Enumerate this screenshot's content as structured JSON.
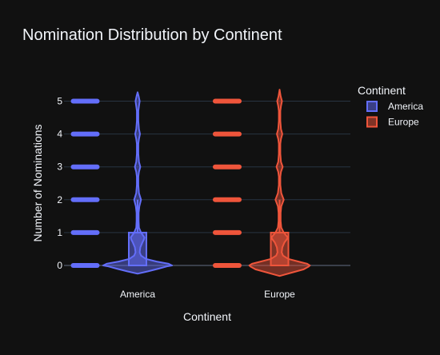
{
  "chart_data": {
    "type": "violin",
    "title": "Nomination Distribution by Continent",
    "xlabel": "Continent",
    "ylabel": "Number of Nominations",
    "categories": [
      "America",
      "Europe"
    ],
    "yticks": [
      0,
      1,
      2,
      3,
      4,
      5
    ],
    "ylim": [
      -0.3,
      5.5
    ],
    "grid": true,
    "legend": {
      "title": "Continent",
      "placement": "top-right"
    },
    "series": [
      {
        "name": "America",
        "color": "#636efa",
        "points": [
          0,
          1,
          2,
          3,
          4,
          5
        ],
        "box": {
          "q1": 0,
          "median": 0,
          "q3": 1,
          "whisker_low": 0,
          "whisker_high": 2
        },
        "density": [
          [
            -0.25,
            0.0
          ],
          [
            -0.18,
            0.3
          ],
          [
            -0.1,
            0.6
          ],
          [
            -0.03,
            0.85
          ],
          [
            0.0,
            1.0
          ],
          [
            0.05,
            0.9
          ],
          [
            0.12,
            0.55
          ],
          [
            0.2,
            0.24
          ],
          [
            0.3,
            0.1
          ],
          [
            0.4,
            0.06
          ],
          [
            0.55,
            0.08
          ],
          [
            0.7,
            0.14
          ],
          [
            0.78,
            0.18
          ],
          [
            0.85,
            0.2
          ],
          [
            1.0,
            0.1
          ],
          [
            1.15,
            0.04
          ],
          [
            1.35,
            0.03
          ],
          [
            1.6,
            0.03
          ],
          [
            1.8,
            0.05
          ],
          [
            2.0,
            0.1
          ],
          [
            2.2,
            0.04
          ],
          [
            2.45,
            0.02
          ],
          [
            2.7,
            0.02
          ],
          [
            2.85,
            0.04
          ],
          [
            3.0,
            0.08
          ],
          [
            3.15,
            0.04
          ],
          [
            3.4,
            0.02
          ],
          [
            3.7,
            0.02
          ],
          [
            3.85,
            0.04
          ],
          [
            4.0,
            0.07
          ],
          [
            4.15,
            0.04
          ],
          [
            4.4,
            0.02
          ],
          [
            4.7,
            0.02
          ],
          [
            4.85,
            0.04
          ],
          [
            5.0,
            0.06
          ],
          [
            5.15,
            0.03
          ],
          [
            5.27,
            0.0
          ]
        ]
      },
      {
        "name": "Europe",
        "color": "#ef553b",
        "points": [
          0,
          1,
          2,
          3,
          4,
          5
        ],
        "box": {
          "q1": 0,
          "median": 0,
          "q3": 1,
          "whisker_low": 0,
          "whisker_high": 2
        },
        "density": [
          [
            -0.32,
            0.0
          ],
          [
            -0.22,
            0.35
          ],
          [
            -0.12,
            0.7
          ],
          [
            -0.03,
            0.85
          ],
          [
            0.0,
            0.88
          ],
          [
            0.05,
            0.8
          ],
          [
            0.12,
            0.55
          ],
          [
            0.2,
            0.25
          ],
          [
            0.3,
            0.1
          ],
          [
            0.4,
            0.06
          ],
          [
            0.55,
            0.08
          ],
          [
            0.7,
            0.14
          ],
          [
            0.78,
            0.2
          ],
          [
            0.85,
            0.24
          ],
          [
            1.0,
            0.12
          ],
          [
            1.15,
            0.05
          ],
          [
            1.35,
            0.03
          ],
          [
            1.6,
            0.03
          ],
          [
            1.8,
            0.05
          ],
          [
            2.0,
            0.12
          ],
          [
            2.2,
            0.05
          ],
          [
            2.45,
            0.02
          ],
          [
            2.7,
            0.02
          ],
          [
            2.85,
            0.04
          ],
          [
            3.0,
            0.09
          ],
          [
            3.15,
            0.04
          ],
          [
            3.4,
            0.02
          ],
          [
            3.7,
            0.02
          ],
          [
            3.85,
            0.04
          ],
          [
            4.0,
            0.08
          ],
          [
            4.15,
            0.04
          ],
          [
            4.4,
            0.02
          ],
          [
            4.7,
            0.02
          ],
          [
            4.85,
            0.04
          ],
          [
            5.0,
            0.07
          ],
          [
            5.15,
            0.03
          ],
          [
            5.35,
            0.0
          ]
        ]
      }
    ]
  }
}
